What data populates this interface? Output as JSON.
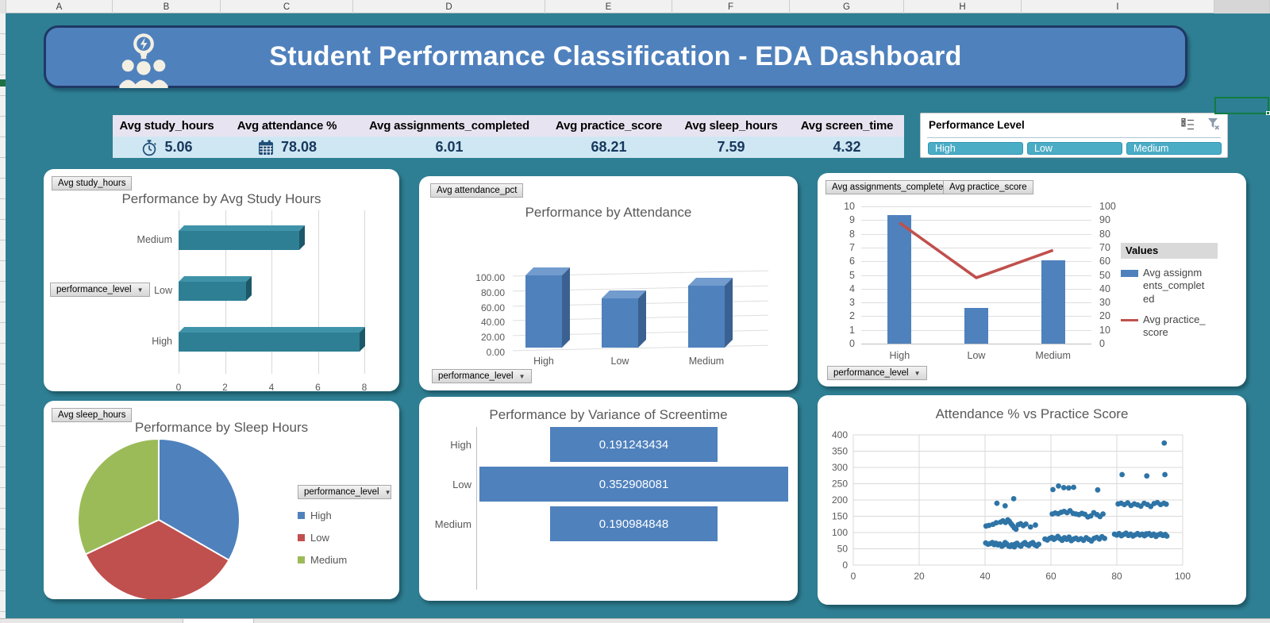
{
  "spreadsheet": {
    "columns": [
      "A",
      "B",
      "C",
      "D",
      "E",
      "F",
      "G",
      "H",
      "I"
    ]
  },
  "banner": {
    "title": "Student Performance Classification - EDA Dashboard"
  },
  "kpi": {
    "items": [
      {
        "label": "Avg study_hours",
        "value": "5.06",
        "icon": "stopwatch-icon"
      },
      {
        "label": "Avg attendance %",
        "value": "78.08",
        "icon": "calendar-icon"
      },
      {
        "label": "Avg assignments_completed",
        "value": "6.01",
        "icon": ""
      },
      {
        "label": "Avg practice_score",
        "value": "68.21",
        "icon": ""
      },
      {
        "label": "Avg sleep_hours",
        "value": "7.59",
        "icon": ""
      },
      {
        "label": "Avg screen_time",
        "value": "4.32",
        "icon": ""
      }
    ]
  },
  "slicer": {
    "title": "Performance Level",
    "buttons": [
      "High",
      "Low",
      "Medium"
    ],
    "button_color": "#4bacc6"
  },
  "colors": {
    "background": "#2e7f93",
    "banner": "#4f81bd",
    "banner_border": "#1f3864",
    "kpi_header_bg": "#e8e3f0",
    "kpi_value_bg": "#cfe7f2",
    "kpi_value_text": "#17375d"
  },
  "chart_data": [
    {
      "type": "bar",
      "orientation": "horizontal",
      "style": "3d",
      "title": "Performance by Avg Study Hours",
      "field_buttons": [
        "Avg study_hours",
        "performance_level"
      ],
      "categories": [
        "Medium",
        "Low",
        "High"
      ],
      "values": [
        5.2,
        2.9,
        7.8
      ],
      "xlim": [
        0,
        8
      ],
      "xstep": 2,
      "bar_color_front": "#2e7f94",
      "bar_color_top": "#3f93a8",
      "bar_color_side": "#1c5868"
    },
    {
      "type": "bar",
      "orientation": "vertical",
      "style": "3d",
      "title": "Performance by Attendance",
      "field_buttons": [
        "Avg attendance_pct",
        "performance_level"
      ],
      "categories": [
        "High",
        "Low",
        "Medium"
      ],
      "values": [
        97,
        66,
        83
      ],
      "ylim": [
        0,
        100
      ],
      "ystep": 20,
      "tick_decimals": 2,
      "bar_color_front": "#4f81bd",
      "bar_color_top": "#729bce",
      "bar_color_side": "#3a6191"
    },
    {
      "type": "combo",
      "title": "",
      "field_buttons": [
        "Avg assignments_completed",
        "Avg practice_score",
        "performance_level"
      ],
      "categories": [
        "High",
        "Low",
        "Medium"
      ],
      "series": [
        {
          "name": "Avg assignments_completed",
          "kind": "bar",
          "axis": "left",
          "color": "#4f81bd",
          "values": [
            9.35,
            2.6,
            6.05
          ]
        },
        {
          "name": "Avg practice_score",
          "kind": "line",
          "axis": "right",
          "color": "#c0504d",
          "values": [
            88,
            48,
            68
          ]
        }
      ],
      "left_axis": {
        "min": 0,
        "max": 10,
        "step": 1
      },
      "right_axis": {
        "min": 0,
        "max": 100,
        "step": 10
      },
      "legend_title": "Values"
    },
    {
      "type": "pie",
      "title": "Performance by Sleep Hours",
      "field_buttons": [
        "Avg sleep_hours",
        "performance_level"
      ],
      "labels": [
        "High",
        "Low",
        "Medium"
      ],
      "values": [
        33.3,
        34.7,
        32.0
      ],
      "colors": [
        "#4f81bd",
        "#c0504d",
        "#9bbb59"
      ]
    },
    {
      "type": "funnel",
      "title": "Performance by Variance of Screentime",
      "categories": [
        "High",
        "Low",
        "Medium"
      ],
      "values": [
        0.191243434,
        0.352908081,
        0.190984848
      ],
      "value_labels": [
        "0.191243434",
        "0.352908081",
        "0.190984848"
      ],
      "bar_color": "#4f81bd"
    },
    {
      "type": "scatter",
      "title": "Attendance % vs Practice Score",
      "xlim": [
        0,
        100
      ],
      "xstep": 20,
      "ylim": [
        0,
        400
      ],
      "ystep": 50,
      "dot_color": "#2e74a6",
      "points": [
        [
          40.2,
          68
        ],
        [
          40.9,
          64
        ],
        [
          41.6,
          66
        ],
        [
          42.2,
          69
        ],
        [
          42.8,
          63
        ],
        [
          43.3,
          67
        ],
        [
          43.9,
          62
        ],
        [
          44.5,
          65
        ],
        [
          45.1,
          58
        ],
        [
          45.6,
          61
        ],
        [
          46.1,
          69
        ],
        [
          46.6,
          65
        ],
        [
          47.1,
          59
        ],
        [
          47.6,
          57
        ],
        [
          48.1,
          62
        ],
        [
          48.6,
          58
        ],
        [
          49.1,
          64
        ],
        [
          49.7,
          67
        ],
        [
          50.3,
          61
        ],
        [
          50.9,
          58
        ],
        [
          51.5,
          65
        ],
        [
          52.1,
          69
        ],
        [
          52.7,
          63
        ],
        [
          53.3,
          60
        ],
        [
          53.9,
          66
        ],
        [
          54.5,
          69
        ],
        [
          55.1,
          62
        ],
        [
          55.7,
          59
        ],
        [
          56.3,
          64
        ],
        [
          48.9,
          56
        ],
        [
          40.3,
          120
        ],
        [
          41.2,
          122
        ],
        [
          42.4,
          125
        ],
        [
          43.4,
          130
        ],
        [
          44.7,
          132
        ],
        [
          45.4,
          136
        ],
        [
          46.2,
          131
        ],
        [
          46.9,
          139
        ],
        [
          47.4,
          134
        ],
        [
          47.9,
          127
        ],
        [
          48.4,
          121
        ],
        [
          48.9,
          114
        ],
        [
          49.4,
          110
        ],
        [
          50.1,
          124
        ],
        [
          50.8,
          127
        ],
        [
          51.6,
          121
        ],
        [
          52.4,
          126
        ],
        [
          53.8,
          117
        ],
        [
          55.3,
          123
        ],
        [
          43.6,
          190
        ],
        [
          46.1,
          182
        ],
        [
          48.7,
          204
        ],
        [
          58.2,
          80
        ],
        [
          58.9,
          77
        ],
        [
          59.6,
          82
        ],
        [
          60.3,
          85
        ],
        [
          60.9,
          79
        ],
        [
          61.5,
          83
        ],
        [
          62.1,
          88
        ],
        [
          62.8,
          81
        ],
        [
          63.4,
          76
        ],
        [
          64.1,
          84
        ],
        [
          64.8,
          79
        ],
        [
          65.5,
          86
        ],
        [
          66.2,
          75
        ],
        [
          66.9,
          80
        ],
        [
          67.6,
          83
        ],
        [
          68.3,
          78
        ],
        [
          69.1,
          81
        ],
        [
          69.9,
          76
        ],
        [
          70.7,
          84
        ],
        [
          71.5,
          79
        ],
        [
          72.3,
          74
        ],
        [
          73.1,
          82
        ],
        [
          73.9,
          85
        ],
        [
          74.7,
          80
        ],
        [
          75.5,
          87
        ],
        [
          76.3,
          82
        ],
        [
          60.4,
          157
        ],
        [
          61.3,
          160
        ],
        [
          62.2,
          158
        ],
        [
          63.1,
          162
        ],
        [
          64,
          165
        ],
        [
          64.9,
          161
        ],
        [
          65.8,
          167
        ],
        [
          66.7,
          159
        ],
        [
          67.6,
          157
        ],
        [
          68.5,
          155
        ],
        [
          69.4,
          159
        ],
        [
          70.3,
          156
        ],
        [
          71.2,
          148
        ],
        [
          72.1,
          151
        ],
        [
          73,
          161
        ],
        [
          74,
          155
        ],
        [
          74.9,
          149
        ],
        [
          75.8,
          157
        ],
        [
          60.6,
          232
        ],
        [
          62.3,
          243
        ],
        [
          63.9,
          238
        ],
        [
          65.4,
          237
        ],
        [
          66.9,
          239
        ],
        [
          74.2,
          231
        ],
        [
          79.3,
          95
        ],
        [
          80,
          92
        ],
        [
          80.7,
          97
        ],
        [
          81.4,
          90
        ],
        [
          82.1,
          94
        ],
        [
          82.8,
          98
        ],
        [
          83.5,
          91
        ],
        [
          84.2,
          95
        ],
        [
          84.9,
          89
        ],
        [
          85.6,
          93
        ],
        [
          86.3,
          97
        ],
        [
          87,
          92
        ],
        [
          87.7,
          95
        ],
        [
          88.4,
          90
        ],
        [
          89.1,
          94
        ],
        [
          89.8,
          97
        ],
        [
          90.5,
          91
        ],
        [
          91.2,
          95
        ],
        [
          91.9,
          88
        ],
        [
          92.6,
          93
        ],
        [
          93.3,
          96
        ],
        [
          94,
          91
        ],
        [
          94.7,
          94
        ],
        [
          95.2,
          89
        ],
        [
          93.8,
          92
        ],
        [
          88.9,
          96
        ],
        [
          80.4,
          188
        ],
        [
          81.3,
          190
        ],
        [
          82.3,
          186
        ],
        [
          83.3,
          191
        ],
        [
          84.3,
          183
        ],
        [
          85.3,
          188
        ],
        [
          86.3,
          185
        ],
        [
          87.3,
          181
        ],
        [
          88.3,
          190
        ],
        [
          89.3,
          186
        ],
        [
          90.3,
          180
        ],
        [
          91.3,
          189
        ],
        [
          92.3,
          192
        ],
        [
          93.3,
          186
        ],
        [
          94.3,
          190
        ],
        [
          95,
          187
        ],
        [
          81.6,
          278
        ],
        [
          89.1,
          274
        ],
        [
          94.6,
          278
        ],
        [
          94.4,
          375
        ]
      ]
    }
  ]
}
